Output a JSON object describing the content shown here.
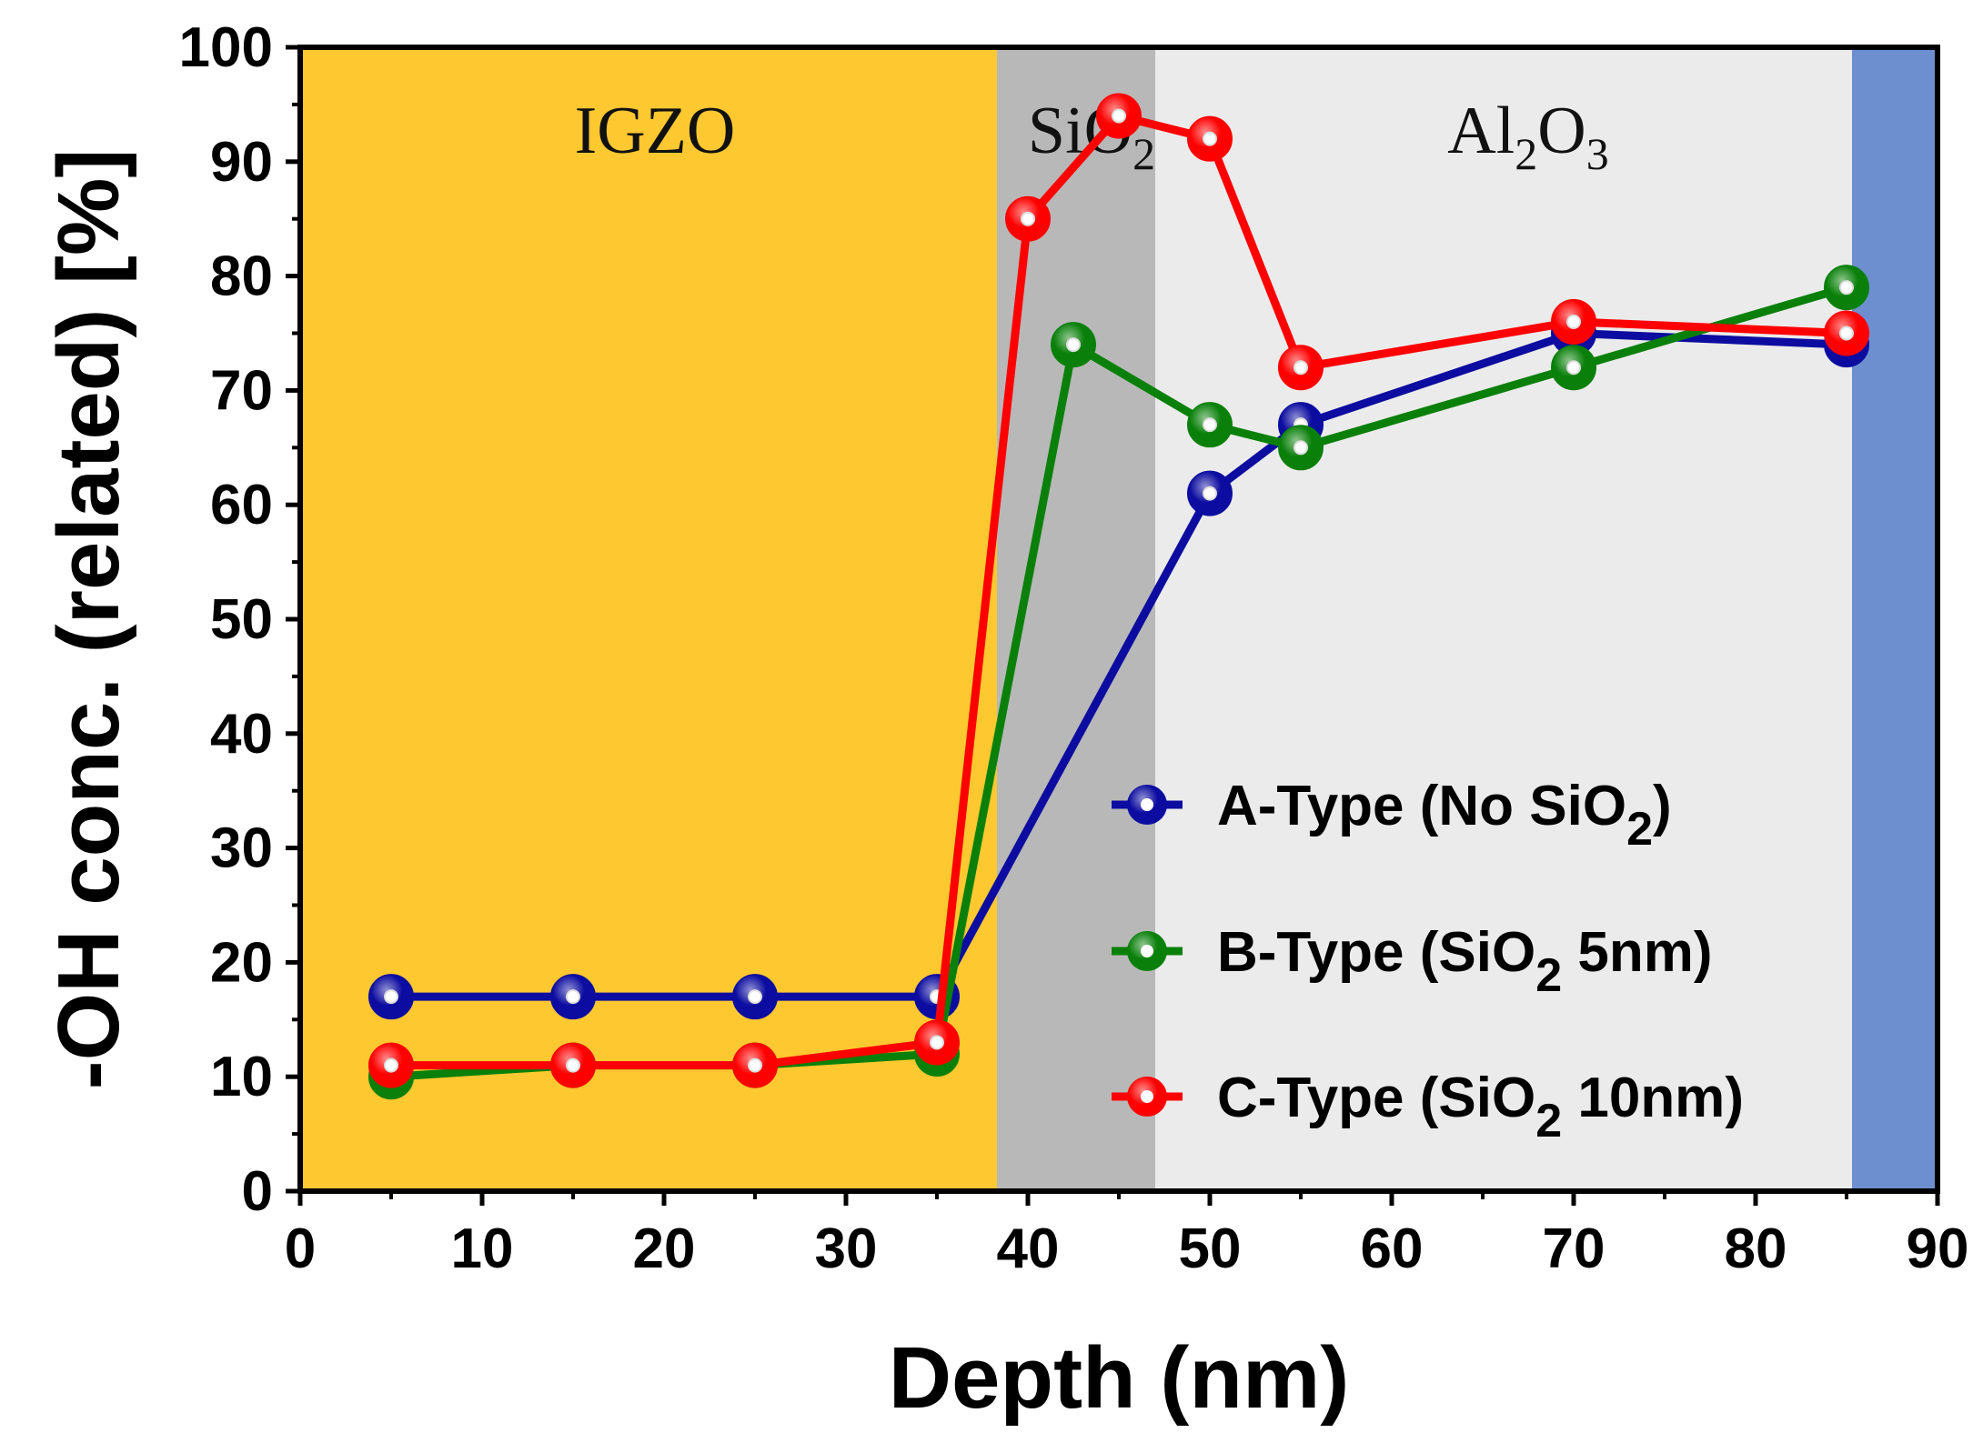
{
  "chart_data": {
    "type": "line",
    "title": "",
    "xlabel": "Depth (nm)",
    "ylabel": "-OH conc. (related) [%]",
    "xlim": [
      0,
      90
    ],
    "ylim": [
      0,
      100
    ],
    "xticks": [
      0,
      10,
      20,
      30,
      40,
      50,
      60,
      70,
      80,
      90
    ],
    "yticks": [
      0,
      10,
      20,
      30,
      40,
      50,
      60,
      70,
      80,
      90,
      100
    ],
    "grid": false,
    "legend_position": "lower-right",
    "regions": [
      {
        "x0": 0,
        "x1": 38.3,
        "color": "#fdc830",
        "label_main": "IGZO",
        "label_sub": "",
        "label_x": 19.5
      },
      {
        "x0": 38.3,
        "x1": 47.0,
        "color": "#b8b8b8",
        "label_main": "SiO",
        "label_sub": "2",
        "label_x": 43.5
      },
      {
        "x0": 47.0,
        "x1": 85.3,
        "color": "#ebebeb",
        "label_main": "Al",
        "label_sub": "2",
        "label_main2": "O",
        "label_sub2": "3",
        "label_x": 67.5
      },
      {
        "x0": 85.3,
        "x1": 90,
        "color": "#6d8fd0",
        "label_main": "",
        "label_sub": "",
        "label_x": 87.5
      }
    ],
    "series": [
      {
        "name": "A-Type (No SiO2)",
        "legend_prefix": "A-Type (No SiO",
        "legend_sub": "2",
        "legend_suffix": ")",
        "color": "#0c0ca0",
        "x": [
          5,
          15,
          25,
          35,
          50,
          55,
          70,
          85
        ],
        "y": [
          17,
          17,
          17,
          17,
          61,
          67,
          75,
          74
        ]
      },
      {
        "name": "B-Type (SiO2 5nm)",
        "legend_prefix": "B-Type (SiO",
        "legend_sub": "2",
        "legend_suffix": " 5nm)",
        "color": "#0a800a",
        "x": [
          5,
          15,
          25,
          35,
          42.5,
          50,
          55,
          70,
          85
        ],
        "y": [
          10,
          11,
          11,
          12,
          74,
          67,
          65,
          72,
          79
        ]
      },
      {
        "name": "C-Type (SiO2 10nm)",
        "legend_prefix": "C-Type (SiO",
        "legend_sub": "2",
        "legend_suffix": " 10nm)",
        "color": "#ff0000",
        "x": [
          5,
          15,
          25,
          35,
          40,
          45,
          50,
          55,
          70,
          85
        ],
        "y": [
          11,
          11,
          11,
          13,
          85,
          94,
          92,
          72,
          76,
          75
        ]
      }
    ]
  }
}
